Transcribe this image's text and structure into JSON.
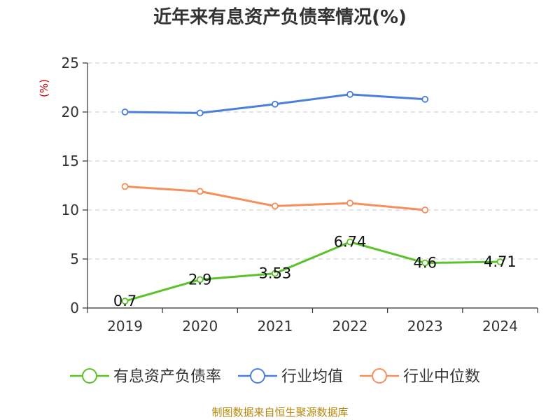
{
  "chart_data": {
    "type": "line",
    "title": "近年来有息资产负债率情况(%)",
    "ylabel": "(%)",
    "xlabel": "",
    "categories": [
      "2019",
      "2020",
      "2021",
      "2022",
      "2023",
      "2024"
    ],
    "ylim": [
      0,
      25
    ],
    "yticks": [
      0,
      5,
      10,
      15,
      20,
      25
    ],
    "grid": true,
    "legend_position": "bottom",
    "series": [
      {
        "name": "有息资产负债率",
        "color": "#5cc22b",
        "values": [
          0.7,
          2.9,
          3.53,
          6.74,
          4.6,
          4.71
        ],
        "data_labels": [
          "0.7",
          "2.9",
          "3.53",
          "6.74",
          "4.6",
          "4.71"
        ]
      },
      {
        "name": "行业均值",
        "color": "#4a7fdb",
        "values": [
          20.0,
          19.9,
          20.8,
          21.8,
          21.3,
          null
        ]
      },
      {
        "name": "行业中位数",
        "color": "#f58f5c",
        "values": [
          12.4,
          11.9,
          10.4,
          10.7,
          10.0,
          null
        ]
      }
    ],
    "source": "制图数据来自恒生聚源数据库"
  }
}
